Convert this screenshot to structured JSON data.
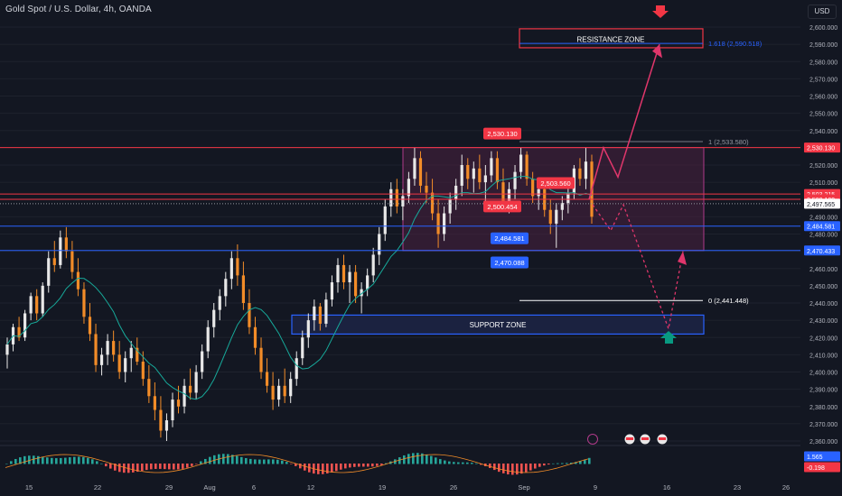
{
  "header": {
    "title": "Gold Spot / U.S. Dollar, 4h, OANDA",
    "currency": "USD"
  },
  "colors": {
    "background": "#131722",
    "up": "#e8e8e8",
    "down": "#f28c28",
    "ma": "#17a99a",
    "red": "#f23645",
    "blue": "#2962ff",
    "pink": "#e0366b",
    "teal": "#089981",
    "zone_fill": "#4a2040",
    "text": "#d1d4dc",
    "grid": "#1e222d"
  },
  "chart_data": {
    "type": "candlestick",
    "symbol": "XAUUSD",
    "interval": "4h",
    "ylim": [
      2355,
      2605
    ],
    "yticks": [
      2360,
      2370,
      2380,
      2390,
      2400,
      2410,
      2420,
      2430,
      2440,
      2450,
      2460,
      2470,
      2480,
      2490,
      2500,
      2510,
      2520,
      2530,
      2540,
      2550,
      2560,
      2570,
      2580,
      2590,
      2600
    ],
    "x_ticks": [
      "15",
      "22",
      "29",
      "Aug",
      "6",
      "12",
      "19",
      "26",
      "Sep",
      "9",
      "16",
      "23",
      "26"
    ],
    "ohlc": [
      [
        2410,
        2420,
        2402,
        2416
      ],
      [
        2416,
        2428,
        2412,
        2426
      ],
      [
        2426,
        2432,
        2418,
        2420
      ],
      [
        2420,
        2436,
        2418,
        2434
      ],
      [
        2434,
        2446,
        2430,
        2444
      ],
      [
        2444,
        2448,
        2430,
        2434
      ],
      [
        2434,
        2452,
        2432,
        2450
      ],
      [
        2450,
        2470,
        2446,
        2466
      ],
      [
        2466,
        2476,
        2458,
        2462
      ],
      [
        2462,
        2482,
        2460,
        2478
      ],
      [
        2478,
        2484,
        2466,
        2470
      ],
      [
        2470,
        2476,
        2454,
        2458
      ],
      [
        2458,
        2466,
        2444,
        2448
      ],
      [
        2448,
        2452,
        2428,
        2432
      ],
      [
        2432,
        2440,
        2418,
        2422
      ],
      [
        2422,
        2428,
        2400,
        2404
      ],
      [
        2404,
        2414,
        2398,
        2410
      ],
      [
        2410,
        2422,
        2404,
        2418
      ],
      [
        2418,
        2424,
        2406,
        2410
      ],
      [
        2410,
        2418,
        2396,
        2400
      ],
      [
        2400,
        2412,
        2394,
        2408
      ],
      [
        2408,
        2418,
        2400,
        2414
      ],
      [
        2414,
        2420,
        2404,
        2406
      ],
      [
        2406,
        2412,
        2392,
        2396
      ],
      [
        2396,
        2404,
        2382,
        2386
      ],
      [
        2386,
        2394,
        2372,
        2378
      ],
      [
        2378,
        2386,
        2362,
        2366
      ],
      [
        2366,
        2376,
        2360,
        2372
      ],
      [
        2372,
        2388,
        2368,
        2384
      ],
      [
        2384,
        2392,
        2376,
        2380
      ],
      [
        2380,
        2396,
        2376,
        2392
      ],
      [
        2392,
        2402,
        2384,
        2388
      ],
      [
        2388,
        2404,
        2384,
        2400
      ],
      [
        2400,
        2416,
        2396,
        2412
      ],
      [
        2412,
        2430,
        2408,
        2426
      ],
      [
        2426,
        2440,
        2420,
        2436
      ],
      [
        2436,
        2448,
        2430,
        2444
      ],
      [
        2444,
        2458,
        2438,
        2454
      ],
      [
        2454,
        2470,
        2448,
        2466
      ],
      [
        2466,
        2474,
        2450,
        2456
      ],
      [
        2456,
        2464,
        2436,
        2440
      ],
      [
        2440,
        2448,
        2422,
        2426
      ],
      [
        2426,
        2432,
        2410,
        2414
      ],
      [
        2414,
        2420,
        2396,
        2400
      ],
      [
        2400,
        2408,
        2388,
        2392
      ],
      [
        2392,
        2400,
        2378,
        2384
      ],
      [
        2384,
        2396,
        2380,
        2392
      ],
      [
        2392,
        2402,
        2382,
        2386
      ],
      [
        2386,
        2400,
        2382,
        2396
      ],
      [
        2396,
        2412,
        2392,
        2408
      ],
      [
        2408,
        2424,
        2404,
        2420
      ],
      [
        2420,
        2434,
        2414,
        2430
      ],
      [
        2430,
        2442,
        2424,
        2438
      ],
      [
        2438,
        2440,
        2424,
        2428
      ],
      [
        2428,
        2446,
        2426,
        2442
      ],
      [
        2442,
        2456,
        2438,
        2452
      ],
      [
        2452,
        2466,
        2446,
        2462
      ],
      [
        2462,
        2468,
        2448,
        2452
      ],
      [
        2452,
        2462,
        2440,
        2458
      ],
      [
        2458,
        2462,
        2440,
        2444
      ],
      [
        2444,
        2452,
        2434,
        2448
      ],
      [
        2448,
        2460,
        2444,
        2456
      ],
      [
        2456,
        2472,
        2452,
        2468
      ],
      [
        2468,
        2484,
        2462,
        2480
      ],
      [
        2480,
        2500,
        2476,
        2496
      ],
      [
        2496,
        2510,
        2490,
        2506
      ],
      [
        2506,
        2512,
        2492,
        2496
      ],
      [
        2496,
        2506,
        2488,
        2502
      ],
      [
        2502,
        2516,
        2498,
        2512
      ],
      [
        2512,
        2530,
        2508,
        2524
      ],
      [
        2524,
        2528,
        2504,
        2508
      ],
      [
        2508,
        2516,
        2498,
        2504
      ],
      [
        2504,
        2512,
        2488,
        2492
      ],
      [
        2492,
        2500,
        2472,
        2480
      ],
      [
        2480,
        2496,
        2476,
        2492
      ],
      [
        2492,
        2504,
        2486,
        2500
      ],
      [
        2500,
        2512,
        2494,
        2508
      ],
      [
        2508,
        2526,
        2502,
        2520
      ],
      [
        2520,
        2524,
        2506,
        2512
      ],
      [
        2512,
        2522,
        2504,
        2518
      ],
      [
        2518,
        2526,
        2506,
        2510
      ],
      [
        2510,
        2520,
        2498,
        2514
      ],
      [
        2514,
        2528,
        2510,
        2524
      ],
      [
        2524,
        2528,
        2506,
        2510
      ],
      [
        2510,
        2518,
        2494,
        2498
      ],
      [
        2498,
        2510,
        2492,
        2506
      ],
      [
        2506,
        2520,
        2500,
        2516
      ],
      [
        2516,
        2530,
        2512,
        2526
      ],
      [
        2526,
        2528,
        2508,
        2512
      ],
      [
        2512,
        2516,
        2498,
        2502
      ],
      [
        2502,
        2510,
        2494,
        2506
      ],
      [
        2506,
        2512,
        2490,
        2494
      ],
      [
        2494,
        2500,
        2480,
        2486
      ],
      [
        2486,
        2498,
        2472,
        2494
      ],
      [
        2494,
        2502,
        2488,
        2498
      ],
      [
        2498,
        2508,
        2492,
        2504
      ],
      [
        2504,
        2520,
        2500,
        2518
      ],
      [
        2518,
        2524,
        2508,
        2512
      ],
      [
        2512,
        2530,
        2506,
        2522
      ],
      [
        2522,
        2526,
        2486,
        2490
      ]
    ],
    "price_labels": [
      {
        "value": "2,530.130",
        "color": "red"
      },
      {
        "value": "2,503.215",
        "color": "red"
      },
      {
        "value": "2,500.109",
        "color": "red"
      },
      {
        "value": "2,497.565",
        "color": "neutral"
      },
      {
        "value": "2,484.581",
        "color": "blue"
      },
      {
        "value": "2,470.433",
        "color": "blue"
      },
      {
        "value": "1.565",
        "color": "blue"
      },
      {
        "value": "-0.198",
        "color": "red"
      }
    ],
    "annotations": {
      "resistance_zone": {
        "label": "RESISTANCE ZONE",
        "low": 2588,
        "high": 2599
      },
      "support_zone": {
        "label": "SUPPORT ZONE",
        "low": 2422,
        "high": 2433
      },
      "fib_1618": "1.618 (2,590.518)",
      "fib_1": "1 (2,533.580)",
      "fib_0": "0 (2,441.448)",
      "callouts": [
        "2,530.130",
        "2,503.560",
        "2,500.454",
        "2,484.581",
        "2,470.088"
      ]
    }
  }
}
